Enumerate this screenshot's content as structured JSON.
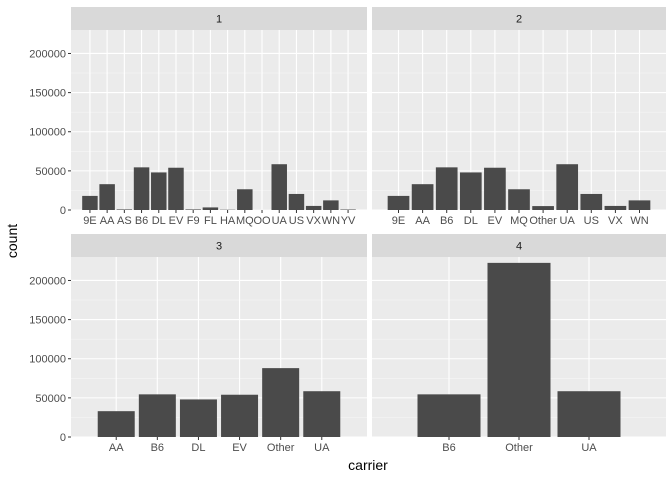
{
  "chart_data": {
    "type": "bar",
    "facet": "faceted bar chart, 2x2 grid, shared y axis",
    "xlabel": "carrier",
    "ylabel": "count",
    "ylim": [
      0,
      230000
    ],
    "yticks": [
      0,
      50000,
      100000,
      150000,
      200000
    ],
    "ytick_labels": [
      "0",
      "50000",
      "100000",
      "150000",
      "200000"
    ],
    "grid": true,
    "bar_color": "#4a4a4a",
    "panel_bg": "#ebebeb",
    "strip_bg": "#d9d9d9",
    "panels": [
      {
        "label": "1",
        "categories": [
          "9E",
          "AA",
          "AS",
          "B6",
          "DL",
          "EV",
          "F9",
          "FL",
          "HA",
          "MQ",
          "OO",
          "UA",
          "US",
          "VX",
          "WN",
          "YV"
        ],
        "values": [
          18000,
          33000,
          700,
          54500,
          48000,
          54000,
          700,
          3300,
          350,
          26500,
          30,
          58500,
          20500,
          5200,
          12300,
          600
        ]
      },
      {
        "label": "2",
        "categories": [
          "9E",
          "AA",
          "B6",
          "DL",
          "EV",
          "MQ",
          "Other",
          "UA",
          "US",
          "VX",
          "WN"
        ],
        "values": [
          18000,
          33000,
          54500,
          48000,
          54000,
          26500,
          5000,
          58500,
          20500,
          5200,
          12300
        ]
      },
      {
        "label": "3",
        "categories": [
          "AA",
          "B6",
          "DL",
          "EV",
          "Other",
          "UA"
        ],
        "values": [
          33000,
          54500,
          48000,
          54000,
          88000,
          58500
        ]
      },
      {
        "label": "4",
        "categories": [
          "B6",
          "Other",
          "UA"
        ],
        "values": [
          54500,
          222500,
          58500
        ]
      }
    ]
  }
}
